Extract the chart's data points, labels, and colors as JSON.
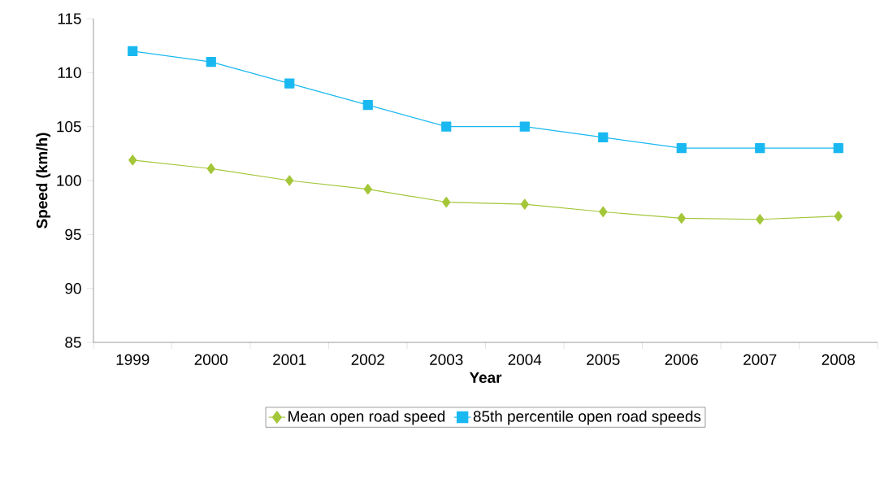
{
  "chart_data": {
    "type": "line",
    "xlabel": "Year",
    "ylabel": "Speed (km/h)",
    "categories": [
      "1999",
      "2000",
      "2001",
      "2002",
      "2003",
      "2004",
      "2005",
      "2006",
      "2007",
      "2008"
    ],
    "series": [
      {
        "name": "Mean open road speed",
        "color": "#a4c639",
        "marker": "diamond",
        "values": [
          101.9,
          101.1,
          100.0,
          99.2,
          98.0,
          97.8,
          97.1,
          96.5,
          96.4,
          96.7
        ]
      },
      {
        "name": "85th percentile open road speeds",
        "color": "#1ab8f0",
        "marker": "square",
        "values": [
          112,
          111,
          109,
          107,
          105,
          105,
          104,
          103,
          103,
          103
        ]
      }
    ],
    "ylim": [
      85,
      115
    ],
    "yticks": [
      85,
      90,
      95,
      100,
      105,
      110,
      115
    ],
    "grid": false,
    "legend": "bottom",
    "line_style": "solid"
  }
}
